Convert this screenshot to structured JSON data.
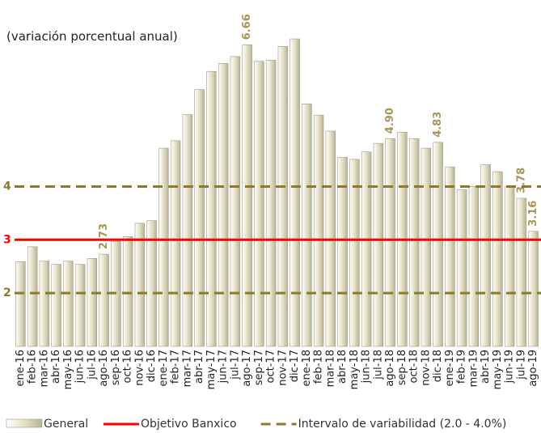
{
  "chart_data": {
    "type": "bar",
    "title": "(variación porcentual anual)",
    "categories": [
      "ene-16",
      "feb-16",
      "mar-16",
      "abr-16",
      "may-16",
      "jun-16",
      "jul-16",
      "ago-16",
      "sep-16",
      "oct-16",
      "nov-16",
      "dic-16",
      "ene-17",
      "feb-17",
      "mar-17",
      "abr-17",
      "may-17",
      "jun-17",
      "jul-17",
      "ago-17",
      "sep-17",
      "oct-17",
      "nov-17",
      "dic-17",
      "ene-18",
      "feb-18",
      "mar-18",
      "abr-18",
      "may-18",
      "jun-18",
      "jul-18",
      "ago-18",
      "sep-18",
      "oct-18",
      "nov-18",
      "dic-18",
      "ene-19",
      "feb-19",
      "mar-19",
      "abr-19",
      "may-19",
      "jun-19",
      "jul-19",
      "ago-19"
    ],
    "series": [
      {
        "name": "General",
        "color": "#e4e0c4",
        "values": [
          2.59,
          2.87,
          2.6,
          2.54,
          2.6,
          2.54,
          2.65,
          2.73,
          2.97,
          3.06,
          3.31,
          3.36,
          4.72,
          4.86,
          5.35,
          5.82,
          6.16,
          6.31,
          6.44,
          6.66,
          6.35,
          6.37,
          6.63,
          6.77,
          5.55,
          5.34,
          5.04,
          4.55,
          4.51,
          4.65,
          4.81,
          4.9,
          5.02,
          4.9,
          4.72,
          4.83,
          4.37,
          3.94,
          4.0,
          4.41,
          4.28,
          4.0,
          3.78,
          3.16
        ],
        "value_labels": [
          null,
          null,
          null,
          null,
          null,
          null,
          null,
          "2.73",
          null,
          null,
          null,
          null,
          null,
          null,
          null,
          null,
          null,
          null,
          null,
          "6.66",
          null,
          null,
          null,
          null,
          null,
          null,
          null,
          null,
          null,
          null,
          null,
          "4.90",
          null,
          null,
          null,
          "4.83",
          null,
          null,
          null,
          null,
          null,
          null,
          "3.78",
          "3.16"
        ]
      }
    ],
    "reference_lines": [
      {
        "name": "Objetivo Banxico",
        "color": "#ff0000",
        "values": [
          3
        ],
        "dashed": false
      },
      {
        "name": "Intervalo de variabilidad (2.0 - 4.0%)",
        "color": "#8c7a28",
        "values": [
          2,
          4
        ],
        "dashed": true
      }
    ],
    "ylim": [
      1,
      7.5
    ],
    "yticks": [
      2,
      3,
      4
    ],
    "label_color": "#a8955a"
  }
}
